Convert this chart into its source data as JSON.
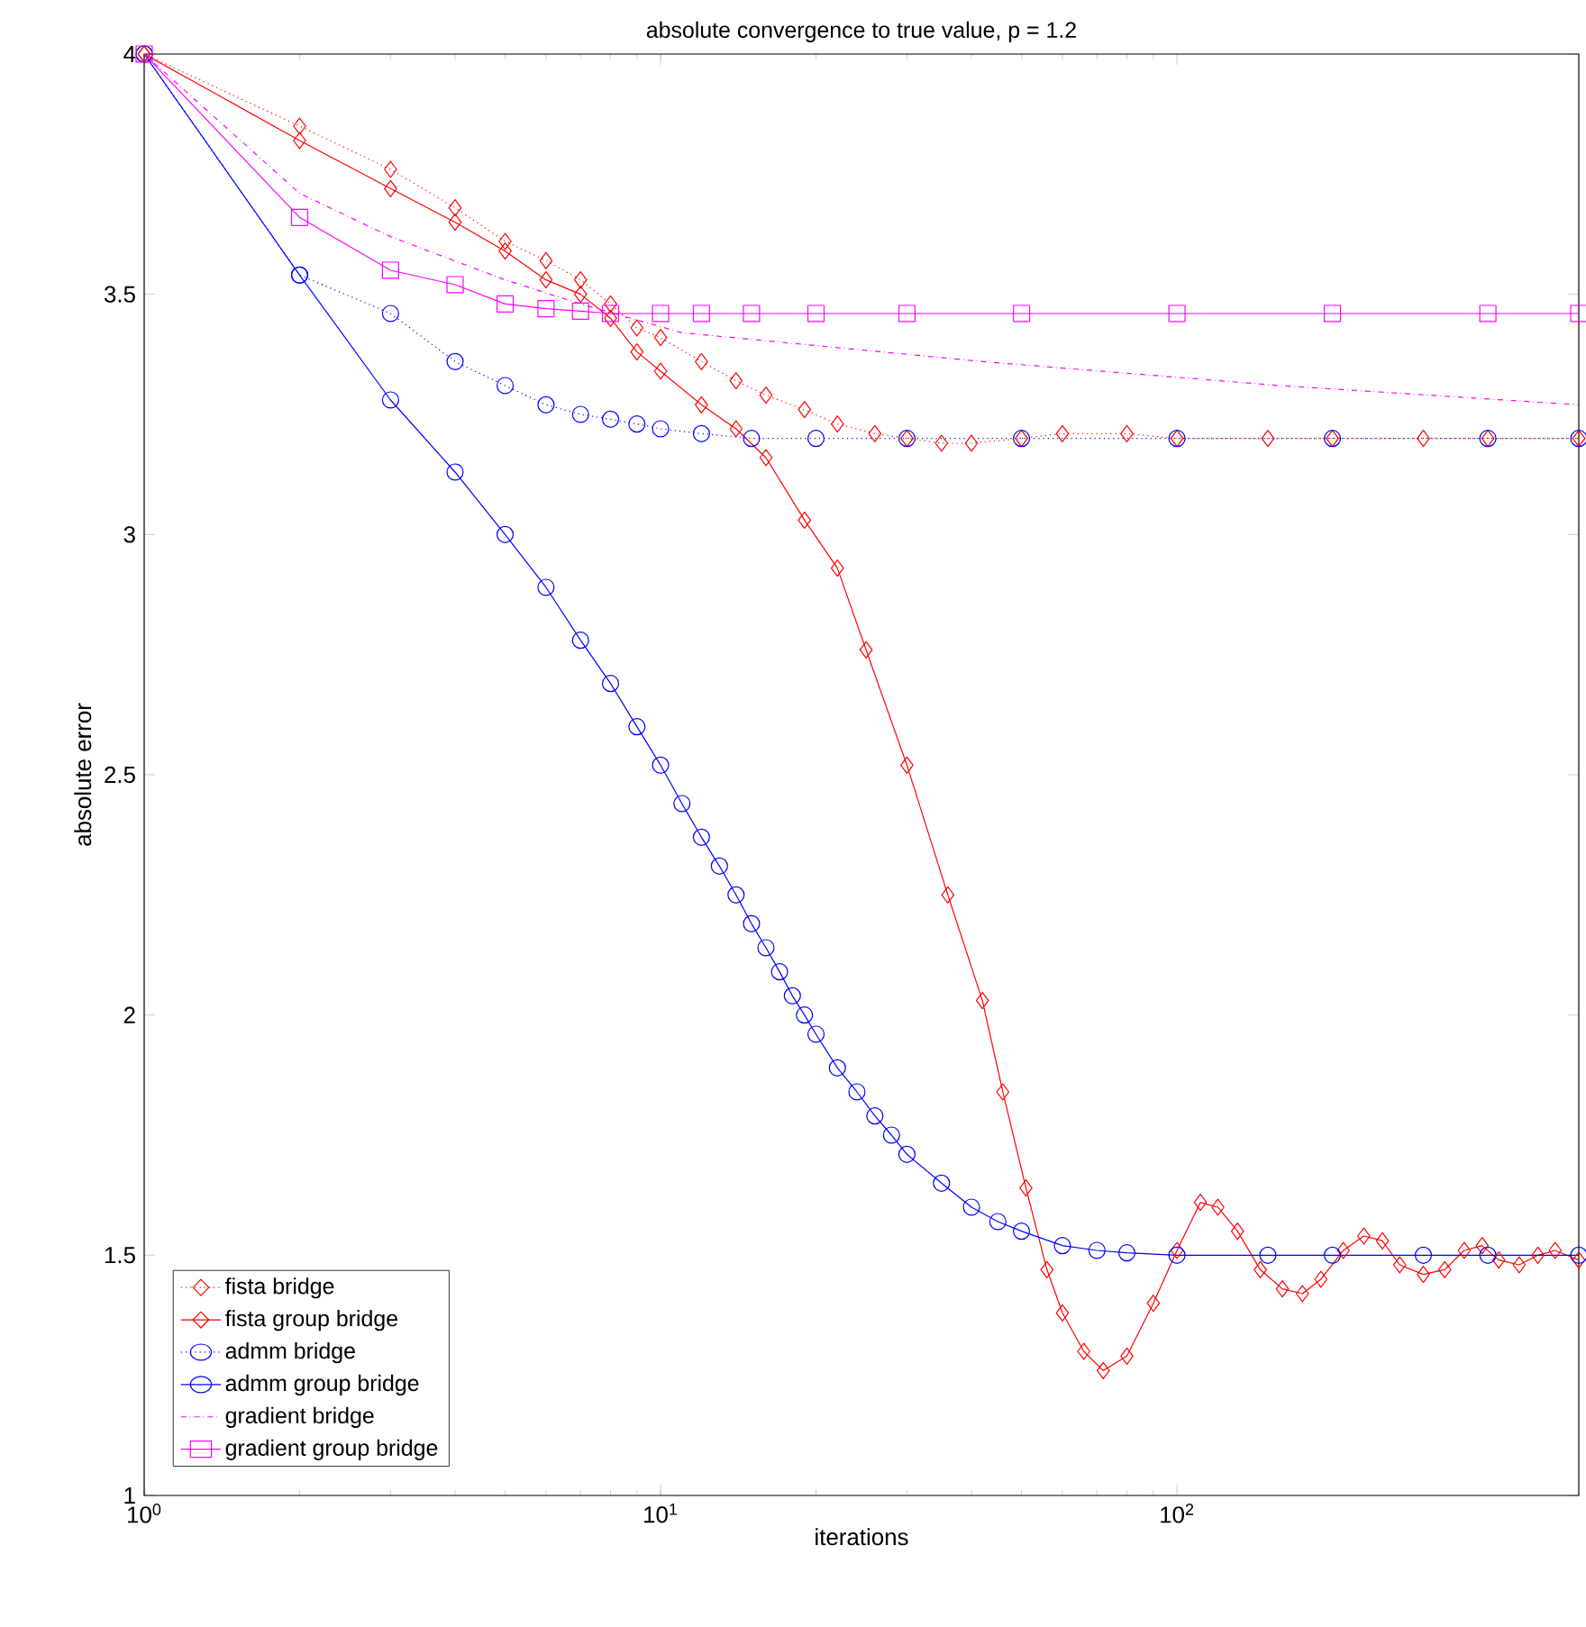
{
  "chart_data": {
    "type": "line",
    "title": "absolute convergence to true value, p = 1.2",
    "xlabel": "iterations",
    "ylabel": "absolute error",
    "log": "x",
    "xlim": [
      1,
      600
    ],
    "ylim": [
      1,
      4
    ],
    "xticks": [
      {
        "value": 1,
        "label": "10$^{0}$"
      },
      {
        "value": 10,
        "label": "10$^{1}$"
      },
      {
        "value": 100,
        "label": "10$^{2}$"
      }
    ],
    "yticks": [
      1,
      1.5,
      2,
      2.5,
      3,
      3.5,
      4
    ],
    "legend": "bottom left",
    "series": [
      {
        "name": "fista bridge",
        "color": "#ff0000",
        "marker": "diamond",
        "line_style": "dotted",
        "x": [
          1,
          2,
          3,
          4,
          5,
          6,
          7,
          8,
          9,
          10,
          12,
          14,
          16,
          19,
          22,
          26,
          30,
          35,
          40,
          50,
          60,
          80,
          100,
          150,
          200,
          300,
          400,
          600
        ],
        "values": [
          4,
          3.85,
          3.76,
          3.68,
          3.61,
          3.57,
          3.53,
          3.48,
          3.43,
          3.41,
          3.36,
          3.32,
          3.29,
          3.26,
          3.23,
          3.21,
          3.2,
          3.19,
          3.19,
          3.2,
          3.21,
          3.21,
          3.2,
          3.2,
          3.2,
          3.2,
          3.2,
          3.2
        ]
      },
      {
        "name": "fista group bridge",
        "color": "#ff0000",
        "marker": "diamond",
        "line_style": "solid",
        "x": [
          1,
          2,
          3,
          4,
          5,
          6,
          7,
          8,
          9,
          10,
          12,
          14,
          16,
          19,
          22,
          25,
          30,
          36,
          42,
          46,
          51,
          56,
          60,
          66,
          72,
          80,
          90,
          100,
          111,
          120,
          131,
          145,
          160,
          175,
          190,
          210,
          230,
          250,
          270,
          300,
          330,
          360,
          390,
          420,
          460,
          500,
          540,
          600
        ],
        "values": [
          4,
          3.82,
          3.72,
          3.65,
          3.59,
          3.53,
          3.5,
          3.45,
          3.38,
          3.34,
          3.27,
          3.22,
          3.16,
          3.03,
          2.93,
          2.76,
          2.52,
          2.25,
          2.03,
          1.84,
          1.64,
          1.47,
          1.38,
          1.3,
          1.26,
          1.29,
          1.4,
          1.51,
          1.61,
          1.6,
          1.55,
          1.47,
          1.43,
          1.42,
          1.45,
          1.51,
          1.54,
          1.53,
          1.48,
          1.46,
          1.47,
          1.51,
          1.52,
          1.49,
          1.48,
          1.5,
          1.51,
          1.49
        ]
      },
      {
        "name": "admm bridge",
        "color": "#0000ff",
        "marker": "circle",
        "line_style": "dotted",
        "x": [
          1,
          2,
          3,
          4,
          5,
          6,
          7,
          8,
          9,
          10,
          12,
          15,
          20,
          30,
          50,
          100,
          200,
          400,
          600
        ],
        "values": [
          4,
          3.54,
          3.46,
          3.36,
          3.31,
          3.27,
          3.25,
          3.24,
          3.23,
          3.22,
          3.21,
          3.2,
          3.2,
          3.2,
          3.2,
          3.2,
          3.2,
          3.2,
          3.2
        ]
      },
      {
        "name": "admm group bridge",
        "color": "#0000ff",
        "marker": "circle",
        "line_style": "solid",
        "x": [
          1,
          2,
          3,
          4,
          5,
          6,
          7,
          8,
          9,
          10,
          11,
          12,
          13,
          14,
          15,
          16,
          17,
          18,
          19,
          20,
          22,
          24,
          26,
          28,
          30,
          35,
          40,
          45,
          50,
          60,
          70,
          80,
          100,
          150,
          200,
          300,
          400,
          600
        ],
        "values": [
          4,
          3.54,
          3.28,
          3.13,
          3.0,
          2.89,
          2.78,
          2.69,
          2.6,
          2.52,
          2.44,
          2.37,
          2.31,
          2.25,
          2.19,
          2.14,
          2.09,
          2.04,
          2.0,
          1.96,
          1.89,
          1.84,
          1.79,
          1.75,
          1.71,
          1.65,
          1.6,
          1.57,
          1.55,
          1.52,
          1.51,
          1.505,
          1.5,
          1.5,
          1.5,
          1.5,
          1.5,
          1.5
        ]
      },
      {
        "name": "gradient bridge",
        "color": "#ff00ff",
        "marker": "none",
        "line_style": "dashdot",
        "x": [
          1,
          2,
          3,
          5,
          7,
          11,
          42,
          158,
          600
        ],
        "values": [
          4,
          3.71,
          3.62,
          3.53,
          3.48,
          3.42,
          3.36,
          3.31,
          3.27
        ]
      },
      {
        "name": "gradient group bridge",
        "color": "#ff00ff",
        "marker": "square",
        "line_style": "solid",
        "x": [
          1,
          2,
          3,
          4,
          5,
          6,
          7,
          8,
          10,
          12,
          15,
          20,
          30,
          50,
          100,
          200,
          400,
          600
        ],
        "values": [
          4,
          3.66,
          3.55,
          3.52,
          3.48,
          3.47,
          3.465,
          3.46,
          3.46,
          3.46,
          3.46,
          3.46,
          3.46,
          3.46,
          3.46,
          3.46,
          3.46,
          3.46
        ]
      }
    ]
  }
}
